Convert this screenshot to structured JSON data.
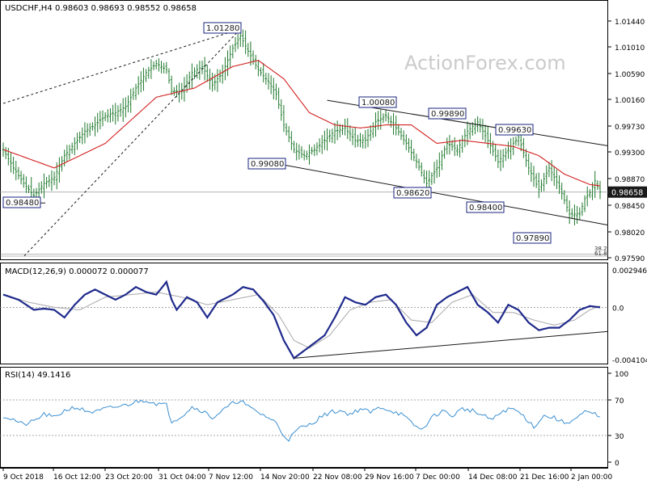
{
  "header": {
    "symbol": "USDCHF,H4",
    "ohlc": "0.98603 0.98693 0.98552 0.98658"
  },
  "watermark": "ActionForex.com",
  "colors": {
    "background": "#ffffff",
    "candle": "#1f7a2e",
    "ma": "#d42020",
    "macd_line": "#1f2a8c",
    "signal_line": "#a8a8a8",
    "rsi_line": "#3a8fd1",
    "trend_lines": "#1a1a1a",
    "label_border": "#1a237e",
    "price_box_bg": "#1a1a1a",
    "price_box_text": "#ffffff",
    "watermark": "#c8c8c8"
  },
  "chart_data": [
    {
      "type": "candlestick",
      "title": "USDCHF,H4",
      "ylim": [
        0.9759,
        1.0144
      ],
      "y_ticks": [
        "1.01440",
        "1.01010",
        "1.00590",
        "1.00160",
        "0.99730",
        "0.99300",
        "0.98870",
        "0.98450",
        "0.98020",
        "0.97590"
      ],
      "current_price": "0.98658",
      "x_ticks": [
        "9 Oct 2018",
        "16 Oct 12:00",
        "23 Oct 20:00",
        "31 Oct 04:00",
        "7 Nov 12:00",
        "14 Nov 20:00",
        "22 Nov 08:00",
        "29 Nov 16:00",
        "7 Dec 00:00",
        "14 Dec 08:00",
        "21 Dec 16:00",
        "2 Jan 00:00"
      ],
      "price_labels": [
        "1.01280",
        "1.00080",
        "0.99890",
        "0.99630",
        "0.99080",
        "0.98620",
        "0.98400",
        "0.97890",
        "0.98480"
      ],
      "fib_labels": [
        "38.2",
        "61.8"
      ],
      "close_path": [
        [
          0,
          0.9935
        ],
        [
          4,
          0.9905
        ],
        [
          8,
          0.988
        ],
        [
          12,
          0.986
        ],
        [
          16,
          0.988
        ],
        [
          20,
          0.989
        ],
        [
          24,
          0.9925
        ],
        [
          28,
          0.9945
        ],
        [
          32,
          0.9965
        ],
        [
          36,
          0.9975
        ],
        [
          40,
          0.999
        ],
        [
          44,
          0.9995
        ],
        [
          48,
          1.0005
        ],
        [
          52,
          1.0035
        ],
        [
          56,
          1.006
        ],
        [
          60,
          1.0075
        ],
        [
          64,
          1.0065
        ],
        [
          66,
          1.003
        ],
        [
          70,
          1.003
        ],
        [
          74,
          1.006
        ],
        [
          78,
          1.007
        ],
        [
          82,
          1.004
        ],
        [
          86,
          1.006
        ],
        [
          90,
          1.01
        ],
        [
          93,
          1.012
        ],
        [
          96,
          1.0095
        ],
        [
          100,
          1.0065
        ],
        [
          104,
          1.0045
        ],
        [
          107,
          1.0025
        ],
        [
          110,
          0.9975
        ],
        [
          114,
          0.9935
        ],
        [
          118,
          0.9925
        ],
        [
          122,
          0.9935
        ],
        [
          126,
          0.995
        ],
        [
          130,
          0.9965
        ],
        [
          134,
          0.997
        ],
        [
          138,
          0.995
        ],
        [
          142,
          0.995
        ],
        [
          146,
          0.998
        ],
        [
          150,
          0.999
        ],
        [
          154,
          0.997
        ],
        [
          158,
          0.9945
        ],
        [
          162,
          0.9915
        ],
        [
          166,
          0.988
        ],
        [
          170,
          0.9905
        ],
        [
          174,
          0.9945
        ],
        [
          178,
          0.9935
        ],
        [
          182,
          0.9965
        ],
        [
          186,
          0.998
        ],
        [
          190,
          0.995
        ],
        [
          194,
          0.9915
        ],
        [
          198,
          0.9935
        ],
        [
          202,
          0.9955
        ],
        [
          206,
          0.9905
        ],
        [
          210,
          0.987
        ],
        [
          214,
          0.9905
        ],
        [
          218,
          0.9875
        ],
        [
          222,
          0.983
        ],
        [
          226,
          0.983
        ],
        [
          228,
          0.9855
        ],
        [
          230,
          0.9865
        ],
        [
          232,
          0.9884
        ],
        [
          234,
          0.9866
        ]
      ],
      "ma_path": [
        [
          0,
          0.9935
        ],
        [
          20,
          0.9905
        ],
        [
          40,
          0.9945
        ],
        [
          60,
          1.002
        ],
        [
          75,
          1.0035
        ],
        [
          90,
          1.007
        ],
        [
          100,
          1.008
        ],
        [
          110,
          1.005
        ],
        [
          120,
          0.9995
        ],
        [
          130,
          0.9975
        ],
        [
          140,
          0.997
        ],
        [
          150,
          0.9975
        ],
        [
          160,
          0.9975
        ],
        [
          170,
          0.9945
        ],
        [
          180,
          0.995
        ],
        [
          190,
          0.9945
        ],
        [
          200,
          0.994
        ],
        [
          210,
          0.9925
        ],
        [
          220,
          0.9895
        ],
        [
          230,
          0.9878
        ],
        [
          234,
          0.9876
        ]
      ],
      "candle_count": 235
    },
    {
      "type": "line",
      "title": "MACD(12,26,9) 0.000072 0.000077",
      "ylim": [
        -0.004104,
        0.002946
      ],
      "y_ticks": [
        "0.002946",
        "0.0",
        "-0.004104"
      ],
      "series": [
        {
          "name": "MACD",
          "points": [
            [
              0,
              0.001
            ],
            [
              6,
              0.0006
            ],
            [
              12,
              -0.0002
            ],
            [
              16,
              -0.0001
            ],
            [
              20,
              -0.0002
            ],
            [
              24,
              -0.0008
            ],
            [
              28,
              0.0002
            ],
            [
              32,
              0.001
            ],
            [
              36,
              0.0014
            ],
            [
              40,
              0.001
            ],
            [
              44,
              0.0006
            ],
            [
              48,
              0.001
            ],
            [
              52,
              0.0016
            ],
            [
              56,
              0.0012
            ],
            [
              60,
              0.001
            ],
            [
              64,
              0.002
            ],
            [
              66,
              0.0006
            ],
            [
              68,
              -0.0002
            ],
            [
              72,
              0.0008
            ],
            [
              76,
              0.0004
            ],
            [
              80,
              -0.0008
            ],
            [
              84,
              0.0004
            ],
            [
              90,
              0.001
            ],
            [
              94,
              0.0016
            ],
            [
              98,
              0.0014
            ],
            [
              102,
              0.0005
            ],
            [
              106,
              -0.0006
            ],
            [
              110,
              -0.0026
            ],
            [
              114,
              -0.004
            ],
            [
              118,
              -0.0034
            ],
            [
              122,
              -0.0028
            ],
            [
              126,
              -0.0022
            ],
            [
              130,
              -0.0008
            ],
            [
              134,
              0.0008
            ],
            [
              138,
              0.0004
            ],
            [
              142,
              0.0002
            ],
            [
              146,
              0.0008
            ],
            [
              150,
              0.001
            ],
            [
              154,
              0.0002
            ],
            [
              158,
              -0.0012
            ],
            [
              162,
              -0.0022
            ],
            [
              166,
              -0.0016
            ],
            [
              170,
              0.0002
            ],
            [
              174,
              0.0008
            ],
            [
              178,
              0.0012
            ],
            [
              182,
              0.0016
            ],
            [
              186,
              0.0002
            ],
            [
              190,
              -0.0004
            ],
            [
              194,
              -0.0012
            ],
            [
              198,
              0.0002
            ],
            [
              202,
              -0.0002
            ],
            [
              206,
              -0.0012
            ],
            [
              210,
              -0.0018
            ],
            [
              214,
              -0.0016
            ],
            [
              218,
              -0.0016
            ],
            [
              222,
              -0.001
            ],
            [
              226,
              -0.0002
            ],
            [
              230,
              0.0001
            ],
            [
              234,
              0.0
            ]
          ]
        },
        {
          "name": "Signal",
          "points": [
            [
              0,
              0.001
            ],
            [
              10,
              0.0004
            ],
            [
              20,
              0.0
            ],
            [
              30,
              -0.0002
            ],
            [
              40,
              0.0008
            ],
            [
              50,
              0.001
            ],
            [
              60,
              0.0012
            ],
            [
              70,
              0.0008
            ],
            [
              80,
              0.0002
            ],
            [
              90,
              0.0006
            ],
            [
              100,
              0.001
            ],
            [
              108,
              -0.0006
            ],
            [
              114,
              -0.0026
            ],
            [
              120,
              -0.0032
            ],
            [
              128,
              -0.0022
            ],
            [
              136,
              -0.0002
            ],
            [
              144,
              0.0004
            ],
            [
              152,
              0.0006
            ],
            [
              160,
              -0.001
            ],
            [
              168,
              -0.0012
            ],
            [
              176,
              0.0004
            ],
            [
              184,
              0.001
            ],
            [
              192,
              -0.0004
            ],
            [
              200,
              -0.0004
            ],
            [
              208,
              -0.001
            ],
            [
              216,
              -0.0014
            ],
            [
              224,
              -0.001
            ],
            [
              230,
              -0.0002
            ],
            [
              234,
              0.0001
            ]
          ]
        }
      ]
    },
    {
      "type": "line",
      "title": "RSI(14) 49.1416",
      "ylim": [
        0,
        100
      ],
      "y_ticks": [
        "100",
        "70",
        "30",
        "0"
      ],
      "series": [
        {
          "name": "RSI(14)",
          "points": [
            [
              0,
              52
            ],
            [
              4,
              48
            ],
            [
              8,
              42
            ],
            [
              12,
              46
            ],
            [
              16,
              54
            ],
            [
              20,
              50
            ],
            [
              24,
              58
            ],
            [
              28,
              62
            ],
            [
              32,
              58
            ],
            [
              36,
              56
            ],
            [
              40,
              60
            ],
            [
              44,
              62
            ],
            [
              48,
              64
            ],
            [
              52,
              68
            ],
            [
              56,
              70
            ],
            [
              60,
              66
            ],
            [
              64,
              64
            ],
            [
              66,
              46
            ],
            [
              70,
              52
            ],
            [
              74,
              62
            ],
            [
              78,
              58
            ],
            [
              82,
              50
            ],
            [
              86,
              58
            ],
            [
              90,
              66
            ],
            [
              93,
              70
            ],
            [
              96,
              62
            ],
            [
              100,
              56
            ],
            [
              104,
              50
            ],
            [
              107,
              44
            ],
            [
              110,
              30
            ],
            [
              112,
              26
            ],
            [
              116,
              38
            ],
            [
              120,
              42
            ],
            [
              124,
              50
            ],
            [
              128,
              56
            ],
            [
              132,
              58
            ],
            [
              136,
              54
            ],
            [
              140,
              60
            ],
            [
              144,
              56
            ],
            [
              148,
              62
            ],
            [
              152,
              58
            ],
            [
              156,
              54
            ],
            [
              160,
              44
            ],
            [
              164,
              36
            ],
            [
              168,
              50
            ],
            [
              172,
              58
            ],
            [
              176,
              52
            ],
            [
              180,
              60
            ],
            [
              184,
              58
            ],
            [
              188,
              52
            ],
            [
              192,
              48
            ],
            [
              196,
              58
            ],
            [
              200,
              60
            ],
            [
              204,
              52
            ],
            [
              208,
              40
            ],
            [
              212,
              52
            ],
            [
              216,
              50
            ],
            [
              220,
              44
            ],
            [
              224,
              48
            ],
            [
              228,
              56
            ],
            [
              232,
              54
            ],
            [
              234,
              49
            ]
          ]
        }
      ]
    }
  ]
}
